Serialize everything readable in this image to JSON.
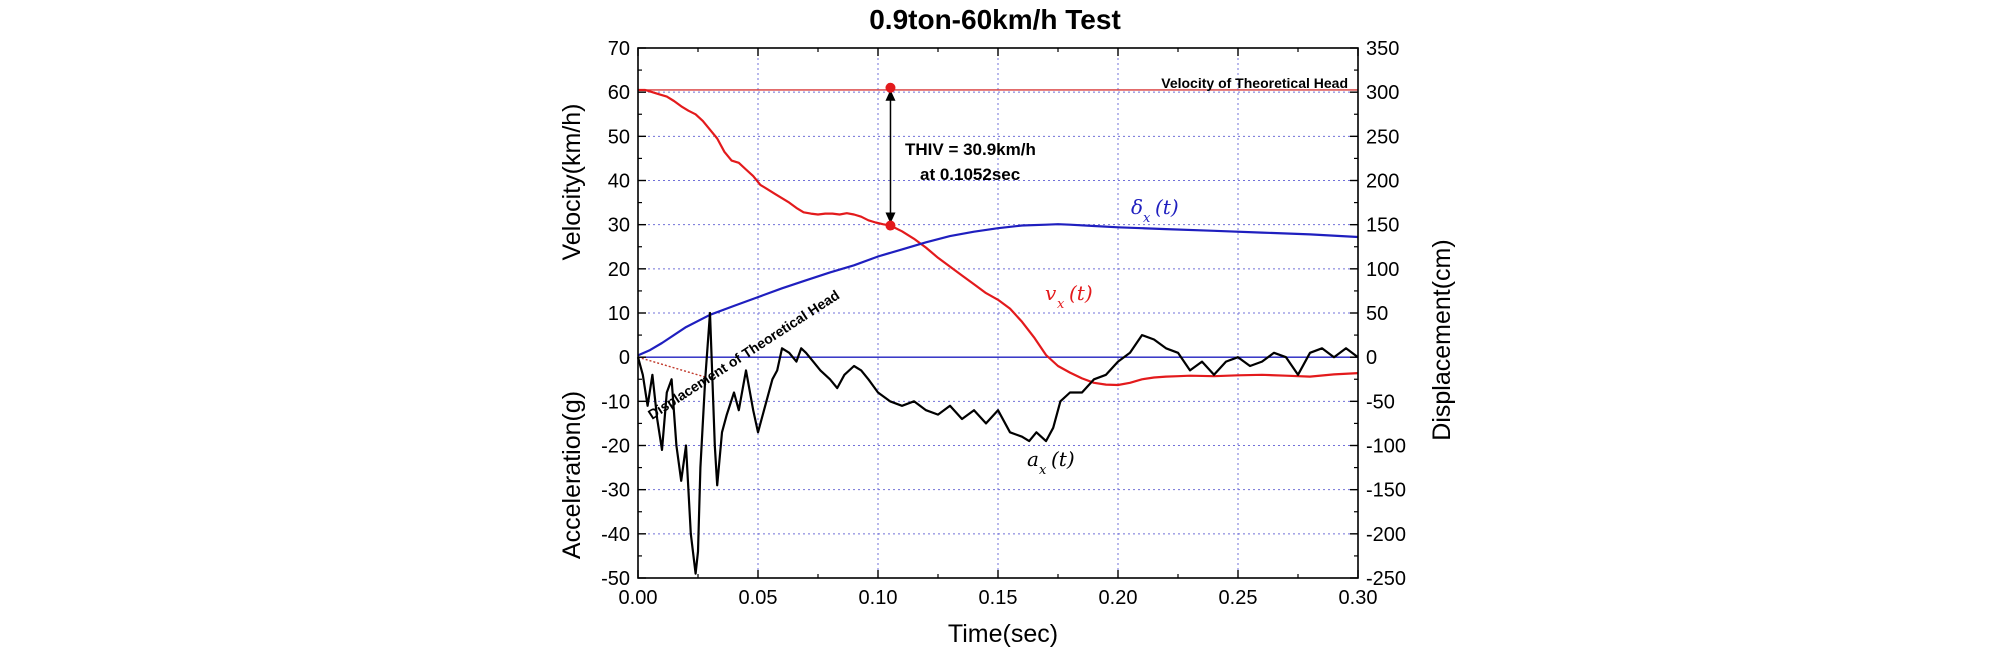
{
  "chart_data": {
    "type": "line",
    "title": "0.9ton-60km/h Test",
    "xlabel": "Time(sec)",
    "ylabel_left_top": "Velocity(km/h)",
    "ylabel_left_bottom": "Acceleration(g)",
    "ylabel_right": "Displacement(cm)",
    "xlim": [
      0.0,
      0.3
    ],
    "ylim_left": [
      -50,
      70
    ],
    "ylim_right": [
      -250,
      350
    ],
    "x_ticks": [
      "0.00",
      "0.05",
      "0.10",
      "0.15",
      "0.20",
      "0.25",
      "0.30"
    ],
    "y_left_ticks": [
      "70",
      "60",
      "50",
      "40",
      "30",
      "20",
      "10",
      "0",
      "-10",
      "-20",
      "-30",
      "-40",
      "-50"
    ],
    "y_right_ticks": [
      "350",
      "300",
      "250",
      "200",
      "150",
      "100",
      "50",
      "0",
      "-50",
      "-100",
      "-150",
      "-200",
      "-250"
    ],
    "grid": true,
    "reference_lines": {
      "velocity_theoretical_head": 60.5,
      "velocity_theoretical_head_label": "Velocity of Theoretical Head",
      "zero_line": 0
    },
    "annotations": {
      "thiv_line1": "THIV = 30.9km/h",
      "thiv_line2": "at 0.1052sec",
      "thiv_time": 0.1052,
      "thiv_top_value": 61,
      "thiv_bottom_value": 29.8,
      "displacement_theoretical_head_label": "Displacement of Theoretical Head"
    },
    "series": [
      {
        "name": "v",
        "subscript": "x",
        "arg": "(t)",
        "axis": "left",
        "color": "#e31a1c",
        "x": [
          0.0,
          0.003,
          0.006,
          0.009,
          0.012,
          0.015,
          0.018,
          0.021,
          0.024,
          0.027,
          0.03,
          0.033,
          0.036,
          0.039,
          0.042,
          0.045,
          0.048,
          0.051,
          0.054,
          0.057,
          0.06,
          0.063,
          0.066,
          0.069,
          0.072,
          0.075,
          0.078,
          0.081,
          0.084,
          0.087,
          0.09,
          0.093,
          0.096,
          0.099,
          0.102,
          0.1052,
          0.11,
          0.115,
          0.12,
          0.125,
          0.13,
          0.135,
          0.14,
          0.145,
          0.15,
          0.155,
          0.16,
          0.165,
          0.17,
          0.175,
          0.18,
          0.185,
          0.19,
          0.195,
          0.2,
          0.205,
          0.21,
          0.215,
          0.22,
          0.225,
          0.23,
          0.24,
          0.25,
          0.26,
          0.27,
          0.28,
          0.29,
          0.3
        ],
        "values": [
          60.5,
          60.5,
          60.0,
          59.5,
          59.0,
          58.0,
          56.8,
          55.8,
          55.0,
          53.5,
          51.5,
          49.5,
          46.5,
          44.5,
          44.0,
          42.5,
          41.0,
          39.0,
          38.0,
          37.0,
          36.0,
          35.0,
          33.8,
          32.8,
          32.5,
          32.3,
          32.5,
          32.5,
          32.3,
          32.6,
          32.3,
          31.8,
          31.0,
          30.5,
          30.1,
          29.8,
          28.5,
          26.8,
          24.8,
          22.5,
          20.5,
          18.5,
          16.5,
          14.5,
          13.0,
          11.0,
          8.0,
          4.5,
          0.5,
          -2.0,
          -3.5,
          -4.8,
          -5.8,
          -6.2,
          -6.3,
          -5.8,
          -5.0,
          -4.6,
          -4.4,
          -4.3,
          -4.2,
          -4.3,
          -4.1,
          -4.0,
          -4.2,
          -4.4,
          -3.9,
          -3.6
        ]
      },
      {
        "name": "δ",
        "subscript": "x",
        "arg": "(t)",
        "axis": "right",
        "color": "#1f1fbf",
        "x": [
          0.0,
          0.005,
          0.01,
          0.02,
          0.03,
          0.04,
          0.05,
          0.06,
          0.07,
          0.08,
          0.09,
          0.1,
          0.11,
          0.12,
          0.13,
          0.14,
          0.15,
          0.16,
          0.17,
          0.175,
          0.18,
          0.19,
          0.2,
          0.21,
          0.22,
          0.24,
          0.26,
          0.28,
          0.3
        ],
        "values": [
          2,
          8,
          16,
          34,
          48,
          58,
          68,
          78,
          87,
          96,
          104,
          114,
          122,
          130,
          137,
          142,
          146,
          149,
          150,
          150.5,
          150,
          148.5,
          147,
          146,
          145,
          143,
          141,
          139,
          136
        ]
      },
      {
        "name": "a",
        "subscript": "x",
        "arg": "(t)",
        "axis": "left",
        "color": "#000000",
        "x": [
          0.0,
          0.002,
          0.004,
          0.006,
          0.008,
          0.01,
          0.012,
          0.014,
          0.016,
          0.018,
          0.02,
          0.022,
          0.024,
          0.025,
          0.026,
          0.028,
          0.03,
          0.032,
          0.033,
          0.035,
          0.037,
          0.04,
          0.042,
          0.045,
          0.048,
          0.05,
          0.053,
          0.056,
          0.058,
          0.06,
          0.063,
          0.066,
          0.068,
          0.07,
          0.073,
          0.076,
          0.08,
          0.083,
          0.086,
          0.09,
          0.093,
          0.096,
          0.1,
          0.105,
          0.11,
          0.115,
          0.12,
          0.125,
          0.13,
          0.135,
          0.14,
          0.145,
          0.15,
          0.155,
          0.16,
          0.163,
          0.166,
          0.17,
          0.173,
          0.176,
          0.18,
          0.185,
          0.19,
          0.195,
          0.2,
          0.205,
          0.21,
          0.215,
          0.22,
          0.225,
          0.23,
          0.235,
          0.24,
          0.245,
          0.25,
          0.255,
          0.26,
          0.265,
          0.27,
          0.275,
          0.28,
          0.285,
          0.29,
          0.295,
          0.3
        ],
        "values": [
          0,
          -4,
          -11,
          -4,
          -14,
          -21,
          -8,
          -5,
          -20,
          -28,
          -20,
          -40,
          -49,
          -44,
          -25,
          -5,
          10,
          -20,
          -29,
          -17,
          -13,
          -8,
          -12,
          -3,
          -12,
          -17,
          -11,
          -5,
          -3,
          2,
          1,
          -1,
          2,
          1,
          -1,
          -3,
          -5,
          -7,
          -4,
          -2,
          -3,
          -5,
          -8,
          -10,
          -11,
          -10,
          -12,
          -13,
          -11,
          -14,
          -12,
          -15,
          -12,
          -17,
          -18,
          -19,
          -17,
          -19,
          -16,
          -10,
          -8,
          -8,
          -5,
          -4,
          -1,
          1,
          5,
          4,
          2,
          1,
          -3,
          -1,
          -4,
          -1,
          0,
          -2,
          -1,
          1,
          0,
          -4,
          1,
          2,
          0,
          2,
          0
        ]
      }
    ]
  }
}
